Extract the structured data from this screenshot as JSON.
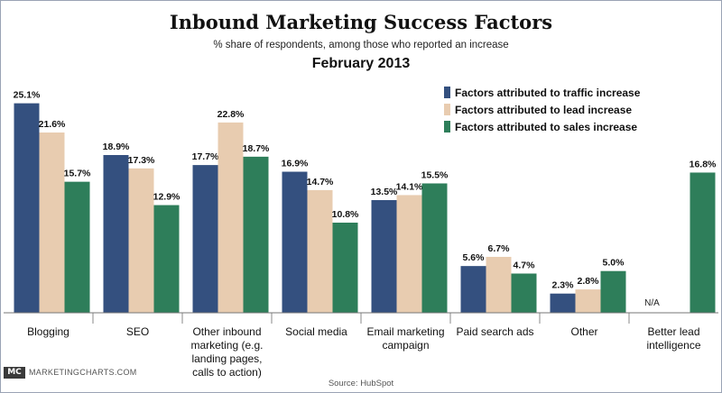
{
  "header": {
    "title": "Inbound Marketing Success Factors",
    "subtitle": "% share of respondents, among those who reported an increase",
    "date": "February 2013"
  },
  "footer": {
    "logo_mark": "MC",
    "logo_text": "MARKETINGCHARTS.COM",
    "source": "Source: HubSpot"
  },
  "colors": {
    "traffic": "#34507f",
    "lead": "#e8ccb0",
    "sales": "#2e7e5a"
  },
  "chart_data": {
    "type": "bar",
    "title": "Inbound Marketing Success Factors",
    "subtitle": "% share of respondents, among those who reported an increase",
    "ylim": [
      0,
      27
    ],
    "grid": false,
    "legend_position": "top-right",
    "categories": [
      [
        "Blogging"
      ],
      [
        "SEO"
      ],
      [
        "Other inbound",
        "marketing (e.g.",
        "landing pages,",
        "calls to action)"
      ],
      [
        "Social media"
      ],
      [
        "Email marketing",
        "campaign"
      ],
      [
        "Paid search ads"
      ],
      [
        "Other"
      ],
      [
        "Better lead",
        "intelligence"
      ]
    ],
    "series": [
      {
        "name": "Factors attributed to traffic increase",
        "values": [
          25.1,
          18.9,
          17.7,
          16.9,
          13.5,
          5.6,
          2.3,
          null
        ],
        "labels": [
          "25.1%",
          "18.9%",
          "17.7%",
          "16.9%",
          "13.5%",
          "5.6%",
          "2.3%",
          "N/A"
        ]
      },
      {
        "name": "Factors attributed to lead increase",
        "values": [
          21.6,
          17.3,
          22.8,
          14.7,
          14.1,
          6.7,
          2.8,
          null
        ],
        "labels": [
          "21.6%",
          "17.3%",
          "22.8%",
          "14.7%",
          "14.1%",
          "6.7%",
          "2.8%",
          ""
        ]
      },
      {
        "name": "Factors attributed to sales increase",
        "values": [
          15.7,
          12.9,
          18.7,
          10.8,
          15.5,
          4.7,
          5.0,
          16.8
        ],
        "labels": [
          "15.7%",
          "12.9%",
          "18.7%",
          "10.8%",
          "15.5%",
          "4.7%",
          "5.0%",
          "16.8%"
        ]
      }
    ]
  }
}
